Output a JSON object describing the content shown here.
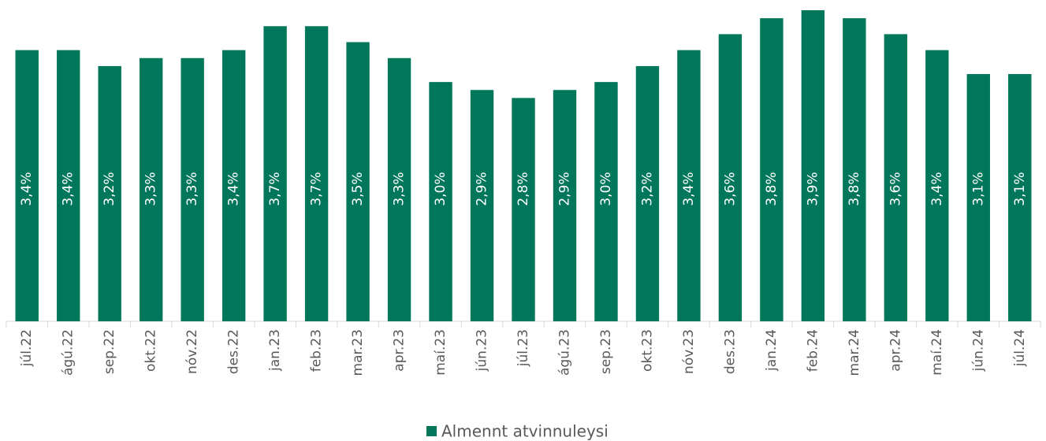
{
  "chart_data": {
    "type": "bar",
    "categories": [
      "júl.22",
      "ágú.22",
      "sep.22",
      "okt.22",
      "nóv.22",
      "des.22",
      "jan.23",
      "feb.23",
      "mar.23",
      "apr.23",
      "maí.23",
      "jún.23",
      "júl.23",
      "ágú.23",
      "sep.23",
      "okt.23",
      "nóv.23",
      "des.23",
      "jan.24",
      "feb.24",
      "mar.24",
      "apr.24",
      "maí.24",
      "jún.24",
      "júl.24"
    ],
    "series": [
      {
        "name": "Almennt atvinnuleysi",
        "color": "#00775a",
        "values": [
          3.4,
          3.4,
          3.2,
          3.3,
          3.3,
          3.4,
          3.7,
          3.7,
          3.5,
          3.3,
          3.0,
          2.9,
          2.8,
          2.9,
          3.0,
          3.2,
          3.4,
          3.6,
          3.8,
          3.9,
          3.8,
          3.6,
          3.4,
          3.1,
          3.1
        ],
        "value_labels": [
          "3,4%",
          "3,4%",
          "3,2%",
          "3,3%",
          "3,3%",
          "3,4%",
          "3,7%",
          "3,7%",
          "3,5%",
          "3,3%",
          "3,0%",
          "2,9%",
          "2,8%",
          "2,9%",
          "3,0%",
          "3,2%",
          "3,4%",
          "3,6%",
          "3,8%",
          "3,9%",
          "3,8%",
          "3,6%",
          "3,4%",
          "3,1%",
          "3,1%"
        ]
      }
    ],
    "legend": "bottom"
  }
}
